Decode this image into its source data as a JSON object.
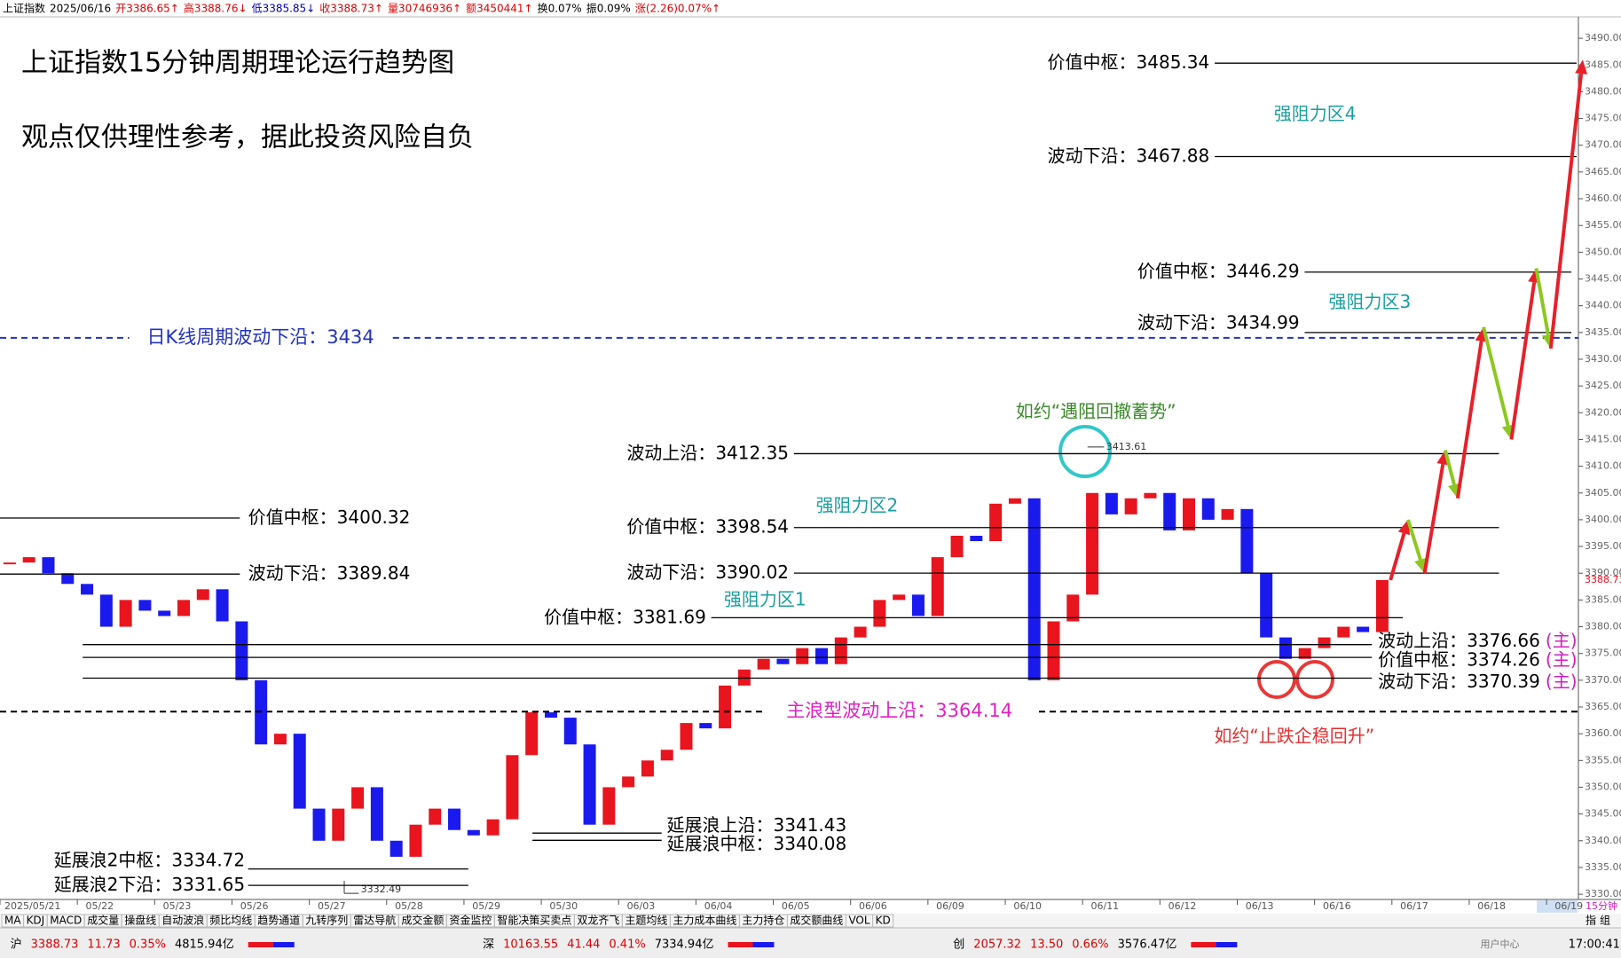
{
  "header": {
    "items": [
      {
        "text": "上证指数",
        "color": "#000000"
      },
      {
        "text": "2025/06/16",
        "color": "#000000"
      },
      {
        "text": "开3386.65↑",
        "color": "#dd0000"
      },
      {
        "text": "高3388.76↓",
        "color": "#dd0000"
      },
      {
        "text": "低3385.85↓",
        "color": "#0000bb"
      },
      {
        "text": "收3388.73↑",
        "color": "#dd0000"
      },
      {
        "text": "量30746936↑",
        "color": "#dd0000"
      },
      {
        "text": "额3450441↑",
        "color": "#dd0000"
      },
      {
        "text": "换0.07%",
        "color": "#000000"
      },
      {
        "text": "振0.09%",
        "color": "#000000"
      },
      {
        "text": "涨(2.26)0.07%↑",
        "color": "#dd0000"
      }
    ]
  },
  "chart_data": {
    "type": "candlestick",
    "title": "上证指数15分钟周期理论运行趋势图",
    "subtitle": "观点仅供理性参考，据此投资风险自负",
    "categories": [
      "2025/05/21",
      "05/22",
      "05/23",
      "05/26",
      "05/27",
      "05/28",
      "05/29",
      "05/30",
      "06/03",
      "06/04",
      "06/05",
      "06/06",
      "06/09",
      "06/10",
      "06/11",
      "06/12",
      "06/13",
      "06/16",
      "06/17",
      "06/18",
      "06/19"
    ],
    "price": {
      "up_color": "#e8141e",
      "down_color": "#1a1aee",
      "values": [
        [
          3392,
          3393,
          3390,
          3388
        ],
        [
          3386,
          3380,
          3385,
          3383
        ],
        [
          3382,
          3385,
          3387,
          3381
        ],
        [
          3370,
          3358,
          3360,
          3346
        ],
        [
          3340,
          3346,
          3350,
          3340
        ],
        [
          3337,
          3343,
          3346,
          3342
        ],
        [
          3341,
          3344,
          3356,
          3364
        ],
        [
          3363,
          3358,
          3343,
          3350
        ],
        [
          3352,
          3355,
          3357,
          3362
        ],
        [
          3361,
          3369,
          3372,
          3374
        ],
        [
          3373,
          3376,
          3373,
          3378
        ],
        [
          3380,
          3385,
          3386,
          3382
        ],
        [
          3393,
          3397,
          3396,
          3403
        ],
        [
          3404,
          3370,
          3381,
          3386
        ],
        [
          3405,
          3401,
          3404,
          3405
        ],
        [
          3398,
          3404,
          3400,
          3402
        ],
        [
          3390,
          3378,
          3374,
          3376
        ],
        [
          3378,
          3380,
          3379,
          3388.73
        ]
      ]
    },
    "last_price": 3388.73,
    "ylim": [
      3330,
      3490
    ],
    "yticks": [
      {
        "value": 3330,
        "label": "3330.00"
      },
      {
        "value": 3335,
        "label": "3335.00"
      },
      {
        "value": 3340,
        "label": "3340.00"
      },
      {
        "value": 3345,
        "label": "3345.00"
      },
      {
        "value": 3350,
        "label": "3350.00"
      },
      {
        "value": 3355,
        "label": "3355.00"
      },
      {
        "value": 3360,
        "label": "3360.00"
      },
      {
        "value": 3365,
        "label": "3365.00"
      },
      {
        "value": 3370,
        "label": "3370.00"
      },
      {
        "value": 3375,
        "label": "3375.00"
      },
      {
        "value": 3380,
        "label": "3380.00"
      },
      {
        "value": 3385,
        "label": "3385.00"
      },
      {
        "value": 3390,
        "label": "3390.00"
      },
      {
        "value": 3395,
        "label": "3395.00"
      },
      {
        "value": 3400,
        "label": "3400.00"
      },
      {
        "value": 3405,
        "label": "3405.00"
      },
      {
        "value": 3410,
        "label": "3410.00"
      },
      {
        "value": 3415,
        "label": "3415.00"
      },
      {
        "value": 3420,
        "label": "3420.00"
      },
      {
        "value": 3425,
        "label": "3425.00"
      },
      {
        "value": 3430,
        "label": "3430.00"
      },
      {
        "value": 3435,
        "label": "3435.00"
      },
      {
        "value": 3440,
        "label": "3440.00"
      },
      {
        "value": 3445,
        "label": "3445.00"
      },
      {
        "value": 3450,
        "label": "3450.00"
      },
      {
        "value": 3455,
        "label": "3455.00"
      },
      {
        "value": 3460,
        "label": "3460.00"
      },
      {
        "value": 3465,
        "label": "3465.00"
      },
      {
        "value": 3470,
        "label": "3470.00"
      },
      {
        "value": 3475,
        "label": "3475.00"
      },
      {
        "value": 3480,
        "label": "3480.00"
      },
      {
        "value": 3485,
        "label": "3485.00"
      },
      {
        "value": 3490,
        "label": "3490.00"
      }
    ],
    "levels": [
      {
        "name": "价值中枢：",
        "value": 3485.34
      },
      {
        "name": "波动下沿：",
        "value": 3467.88
      },
      {
        "name": "价值中枢：",
        "value": 3446.29
      },
      {
        "name": "波动下沿：",
        "value": 3434.99
      },
      {
        "name": "波动上沿：",
        "value": 3412.35
      },
      {
        "name": "价值中枢：",
        "value": 3398.54
      },
      {
        "name": "波动下沿：",
        "value": 3390.02
      },
      {
        "name": "价值中枢：",
        "value": 3381.69
      },
      {
        "name": "价值中枢：",
        "value": 3400.32
      },
      {
        "name": "波动下沿：",
        "value": 3389.84
      },
      {
        "name": "波动上沿：",
        "value": 3376.66,
        "suffix": "(主)"
      },
      {
        "name": "价值中枢：",
        "value": 3374.26,
        "suffix": "(主)"
      },
      {
        "name": "波动下沿：",
        "value": 3370.39,
        "suffix": "(主)"
      },
      {
        "name": "延展浪上沿：",
        "value": 3341.43
      },
      {
        "name": "延展浪中枢：",
        "value": 3340.08
      },
      {
        "name": "延展浪2中枢：",
        "value": 3334.72
      },
      {
        "name": "延展浪2下沿：",
        "value": 3331.65
      }
    ],
    "dashed_levels": [
      {
        "name": "日K线周期波动下沿：",
        "value": 3434,
        "color": "#2233bb"
      },
      {
        "name": "主浪型波动上沿：",
        "value": 3364.14,
        "color": "#e020c0"
      }
    ],
    "zones": [
      "强阻力区4",
      "强阻力区3",
      "强阻力区2",
      "强阻力区1"
    ],
    "annotations": [
      {
        "text": "如约“遇阻回撤蓄势”",
        "color": "#3a8a2a"
      },
      {
        "text": "如约“止跌企稳回升”",
        "color": "#e03030"
      }
    ],
    "extremes": [
      3413.61,
      3332.49
    ],
    "projection": {
      "up_color": "#e8202a",
      "down_color": "#8cc820",
      "values": [
        3400,
        3390,
        3413,
        3404,
        3436,
        3415,
        3447,
        3432,
        3486
      ]
    }
  },
  "ui": {
    "tabs": [
      "MA",
      "KDJ",
      "MACD",
      "成交量",
      "操盘线",
      "自动波浪",
      "频比均线",
      "趋势通道",
      "九转序列",
      "雷达导航",
      "成交金额",
      "资金监控",
      "智能决策买卖点",
      "双龙齐飞",
      "主题均线",
      "主力成本曲线",
      "主力持仓",
      "成交额曲线",
      "VOL",
      "KD"
    ],
    "period": "15分钟",
    "side": [
      "指",
      "组"
    ],
    "status": [
      {
        "market": "沪",
        "values": [
          "3388.73",
          "11.73",
          "0.35%",
          "4815.94亿"
        ]
      },
      {
        "market": "深",
        "values": [
          "10163.55",
          "41.44",
          "0.41%",
          "7334.94亿"
        ]
      },
      {
        "market": "创",
        "values": [
          "2057.32",
          "13.50",
          "0.66%",
          "3576.47亿"
        ]
      }
    ],
    "user": "用户中心",
    "time": "17:00:41"
  }
}
